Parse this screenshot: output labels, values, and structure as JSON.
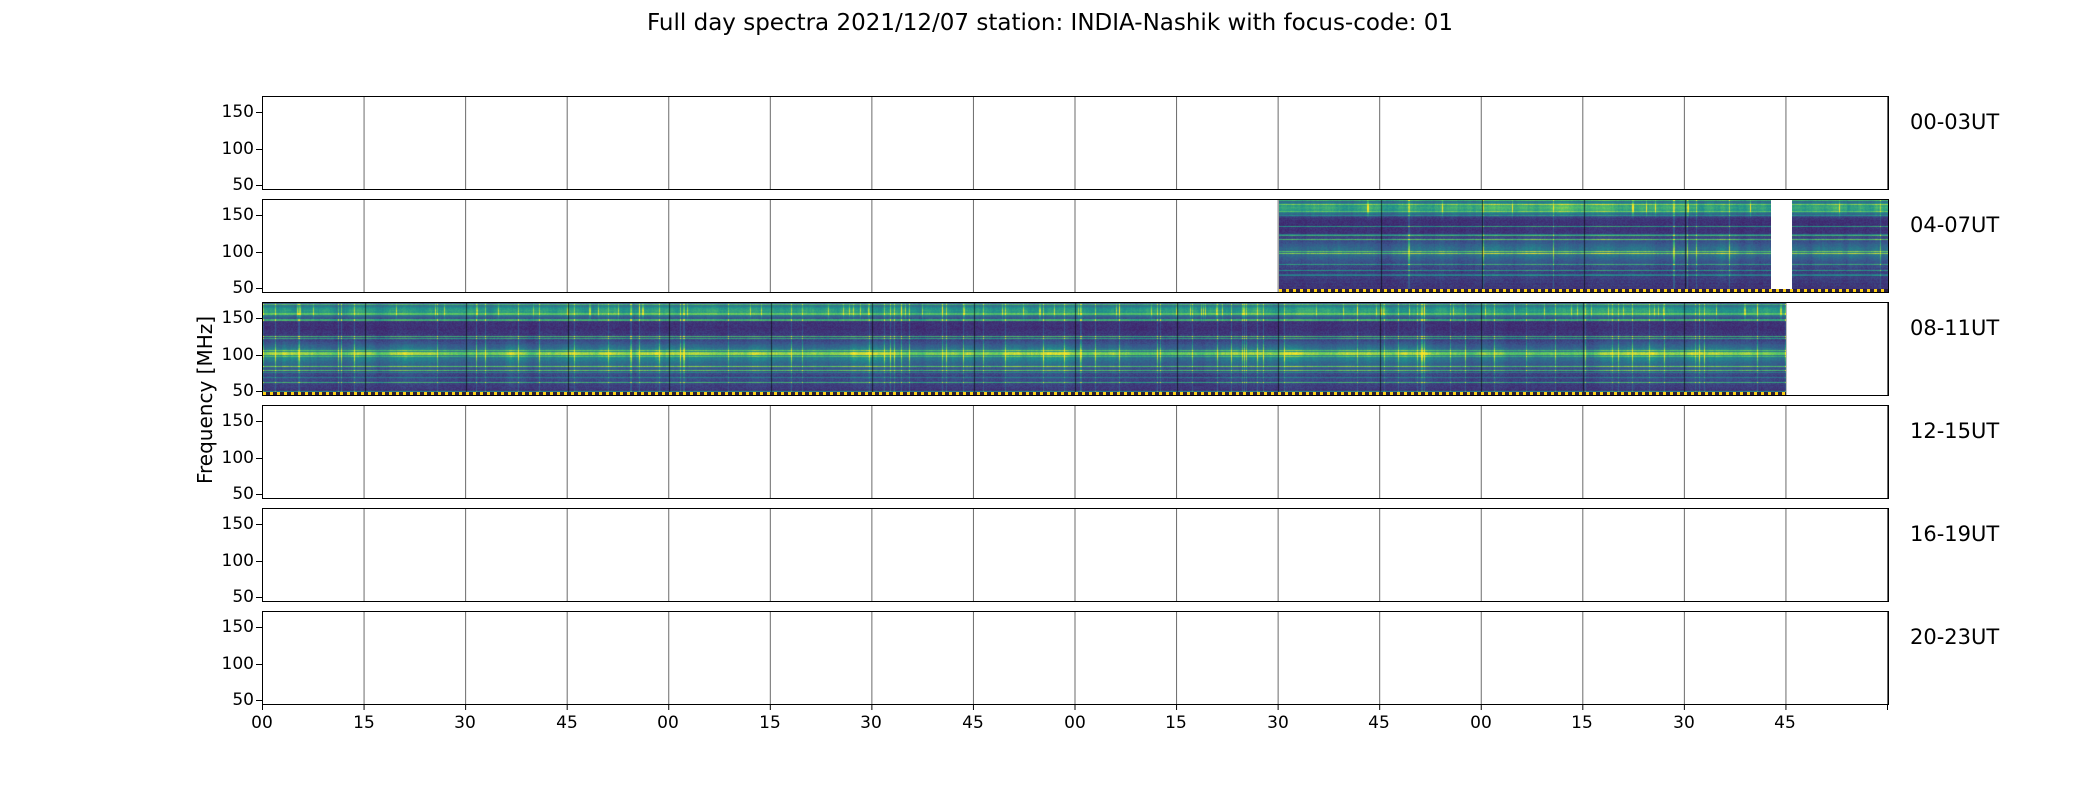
{
  "figure": {
    "title": "Full day spectra 2021/12/07 station: INDIA-Nashik with focus-code: 01",
    "ylabel": "Frequency [MHz]"
  },
  "yticks": [
    "150",
    "100",
    "50"
  ],
  "xticks": [
    "00",
    "15",
    "30",
    "45",
    "00",
    "15",
    "30",
    "45",
    "00",
    "15",
    "30",
    "45",
    "00",
    "15",
    "30",
    "45"
  ],
  "panels": [
    {
      "label": "00-03UT"
    },
    {
      "label": "04-07UT"
    },
    {
      "label": "08-11UT"
    },
    {
      "label": "12-15UT"
    },
    {
      "label": "16-19UT"
    },
    {
      "label": "20-23UT"
    }
  ],
  "chart_data": {
    "type": "heatmap",
    "subtype": "radio-spectrogram-grid",
    "title": "Full day spectra 2021/12/07 station: INDIA-Nashik with focus-code: 01",
    "date": "2021/12/07",
    "station": "INDIA-Nashik",
    "focus_code": "01",
    "ylabel": "Frequency [MHz]",
    "yticks": [
      150,
      100,
      50
    ],
    "ylim": [
      45,
      172
    ],
    "x_tick_labels_per_panel": [
      "00",
      "15",
      "30",
      "45",
      "00",
      "15",
      "30",
      "45",
      "00",
      "15",
      "30",
      "45",
      "00",
      "15",
      "30",
      "45"
    ],
    "x_tick_interval_minutes": 15,
    "hours_per_panel": 4,
    "colormap": "viridis",
    "background_color": "#ffffff",
    "overlay_dotted_line_color": "#fdd017",
    "grid": true,
    "legend_position": "none",
    "panels": [
      {
        "label": "00-03UT",
        "has_data": false,
        "data_coverage_frac": []
      },
      {
        "label": "04-07UT",
        "has_data": true,
        "data_coverage_frac": [
          {
            "start": 0.625,
            "end": 0.928
          },
          {
            "start": 0.941,
            "end": 1.0
          }
        ]
      },
      {
        "label": "08-11UT",
        "has_data": true,
        "data_coverage_frac": [
          {
            "start": 0.0,
            "end": 0.9375
          }
        ]
      },
      {
        "label": "12-15UT",
        "has_data": false,
        "data_coverage_frac": []
      },
      {
        "label": "16-19UT",
        "has_data": false,
        "data_coverage_frac": []
      },
      {
        "label": "20-23UT",
        "has_data": false,
        "data_coverage_frac": []
      }
    ]
  }
}
